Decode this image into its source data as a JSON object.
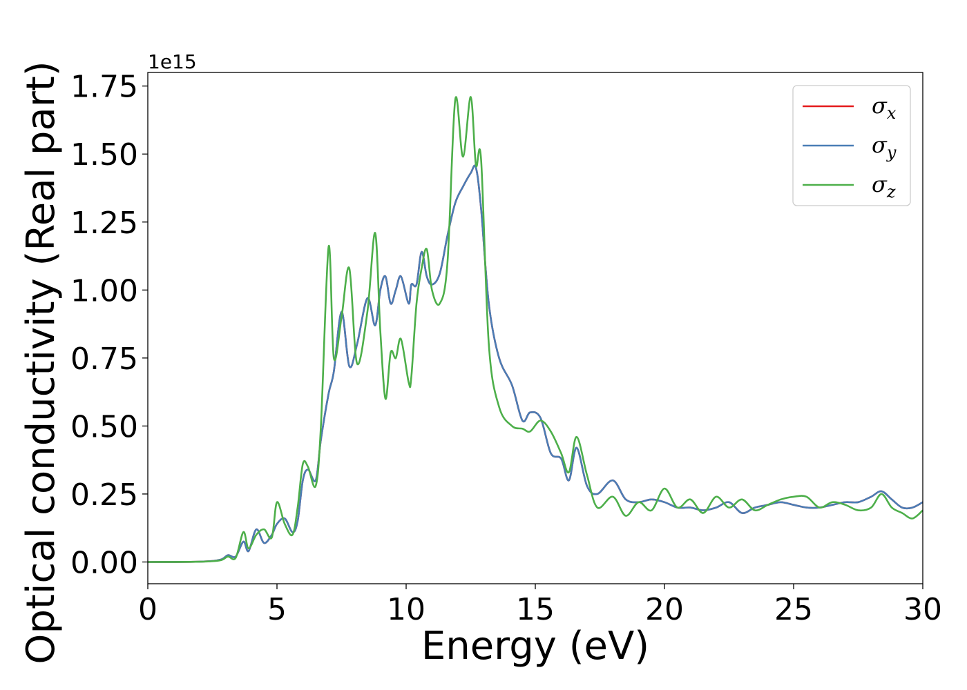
{
  "chart_data": {
    "type": "line",
    "xlabel": "Energy (eV)",
    "ylabel": "Optical conductivity (Real part)",
    "offset_text": "1e15",
    "xlim": [
      0,
      30
    ],
    "ylim": [
      -0.08,
      1.8
    ],
    "xticks": [
      0,
      5,
      10,
      15,
      20,
      25,
      30
    ],
    "xtick_labels": [
      "0",
      "5",
      "10",
      "15",
      "20",
      "25",
      "30"
    ],
    "yticks": [
      0.0,
      0.25,
      0.5,
      0.75,
      1.0,
      1.25,
      1.5,
      1.75
    ],
    "ytick_labels": [
      "0.00",
      "0.25",
      "0.50",
      "0.75",
      "1.00",
      "1.25",
      "1.50",
      "1.75"
    ],
    "grid": false,
    "legend_position": "top-right",
    "series": [
      {
        "name": "σx",
        "color": "#e41a1c",
        "x": [
          0,
          2,
          2.8,
          3.1,
          3.4,
          3.7,
          3.9,
          4.2,
          4.5,
          4.8,
          5.0,
          5.3,
          5.6,
          5.8,
          6.0,
          6.2,
          6.5,
          6.7,
          7.0,
          7.2,
          7.5,
          7.8,
          8.1,
          8.5,
          8.8,
          9.0,
          9.2,
          9.4,
          9.6,
          9.8,
          10.1,
          10.2,
          10.4,
          10.6,
          10.8,
          11.0,
          11.3,
          11.6,
          11.9,
          12.2,
          12.5,
          12.7,
          12.9,
          13.2,
          13.6,
          14.1,
          14.5,
          14.8,
          15.2,
          15.6,
          16.0,
          16.3,
          16.6,
          17.0,
          17.4,
          18.0,
          18.5,
          19.0,
          19.5,
          20.0,
          20.5,
          21.0,
          21.5,
          22.0,
          22.5,
          23.0,
          23.5,
          24.0,
          24.5,
          25.0,
          25.5,
          26.0,
          26.5,
          27.0,
          27.5,
          28.0,
          28.4,
          28.8,
          29.2,
          29.6,
          30.0
        ],
        "y": [
          0,
          0.001,
          0.008,
          0.025,
          0.02,
          0.075,
          0.04,
          0.12,
          0.07,
          0.1,
          0.14,
          0.16,
          0.11,
          0.15,
          0.3,
          0.34,
          0.3,
          0.45,
          0.62,
          0.7,
          0.92,
          0.72,
          0.8,
          0.97,
          0.87,
          1.0,
          1.05,
          0.95,
          1.0,
          1.05,
          0.95,
          1.02,
          1.02,
          1.14,
          1.05,
          1.02,
          1.06,
          1.2,
          1.32,
          1.38,
          1.43,
          1.45,
          1.3,
          0.95,
          0.75,
          0.65,
          0.52,
          0.55,
          0.53,
          0.4,
          0.38,
          0.3,
          0.42,
          0.28,
          0.25,
          0.3,
          0.23,
          0.22,
          0.23,
          0.22,
          0.2,
          0.2,
          0.19,
          0.2,
          0.22,
          0.18,
          0.2,
          0.21,
          0.22,
          0.21,
          0.2,
          0.2,
          0.21,
          0.22,
          0.22,
          0.24,
          0.26,
          0.23,
          0.2,
          0.2,
          0.22
        ]
      },
      {
        "name": "σy",
        "color": "#4a7db5",
        "x": [
          0,
          2,
          2.8,
          3.1,
          3.4,
          3.7,
          3.9,
          4.2,
          4.5,
          4.8,
          5.0,
          5.3,
          5.6,
          5.8,
          6.0,
          6.2,
          6.5,
          6.7,
          7.0,
          7.2,
          7.5,
          7.8,
          8.1,
          8.5,
          8.8,
          9.0,
          9.2,
          9.4,
          9.6,
          9.8,
          10.1,
          10.2,
          10.4,
          10.6,
          10.8,
          11.0,
          11.3,
          11.6,
          11.9,
          12.2,
          12.5,
          12.7,
          12.9,
          13.2,
          13.6,
          14.1,
          14.5,
          14.8,
          15.2,
          15.6,
          16.0,
          16.3,
          16.6,
          17.0,
          17.4,
          18.0,
          18.5,
          19.0,
          19.5,
          20.0,
          20.5,
          21.0,
          21.5,
          22.0,
          22.5,
          23.0,
          23.5,
          24.0,
          24.5,
          25.0,
          25.5,
          26.0,
          26.5,
          27.0,
          27.5,
          28.0,
          28.4,
          28.8,
          29.2,
          29.6,
          30.0
        ],
        "y": [
          0,
          0.001,
          0.008,
          0.025,
          0.02,
          0.075,
          0.04,
          0.12,
          0.07,
          0.1,
          0.14,
          0.16,
          0.11,
          0.15,
          0.3,
          0.34,
          0.3,
          0.45,
          0.62,
          0.7,
          0.92,
          0.72,
          0.8,
          0.97,
          0.87,
          1.0,
          1.05,
          0.95,
          1.0,
          1.05,
          0.95,
          1.02,
          1.02,
          1.14,
          1.05,
          1.02,
          1.06,
          1.2,
          1.32,
          1.38,
          1.43,
          1.45,
          1.3,
          0.95,
          0.75,
          0.65,
          0.52,
          0.55,
          0.53,
          0.4,
          0.38,
          0.3,
          0.42,
          0.28,
          0.25,
          0.3,
          0.23,
          0.22,
          0.23,
          0.22,
          0.2,
          0.2,
          0.19,
          0.2,
          0.22,
          0.18,
          0.2,
          0.21,
          0.22,
          0.21,
          0.2,
          0.2,
          0.21,
          0.22,
          0.22,
          0.24,
          0.26,
          0.23,
          0.2,
          0.2,
          0.22
        ]
      },
      {
        "name": "σz",
        "color": "#4daf4a",
        "x": [
          0,
          2,
          2.8,
          3.1,
          3.4,
          3.7,
          3.9,
          4.2,
          4.5,
          4.8,
          5.0,
          5.3,
          5.6,
          5.8,
          6.0,
          6.2,
          6.5,
          6.7,
          7.0,
          7.2,
          7.5,
          7.8,
          8.1,
          8.5,
          8.8,
          9.0,
          9.2,
          9.4,
          9.6,
          9.8,
          10.1,
          10.2,
          10.4,
          10.6,
          10.8,
          11.0,
          11.3,
          11.6,
          11.9,
          12.2,
          12.5,
          12.7,
          12.9,
          13.2,
          13.6,
          14.1,
          14.5,
          14.8,
          15.2,
          15.6,
          16.0,
          16.3,
          16.6,
          17.0,
          17.4,
          18.0,
          18.5,
          19.0,
          19.5,
          20.0,
          20.5,
          21.0,
          21.5,
          22.0,
          22.5,
          23.0,
          23.5,
          24.0,
          24.5,
          25.0,
          25.5,
          26.0,
          26.5,
          27.0,
          27.5,
          28.0,
          28.4,
          28.8,
          29.2,
          29.6,
          30.0
        ],
        "y": [
          0,
          0.001,
          0.006,
          0.02,
          0.015,
          0.11,
          0.05,
          0.1,
          0.12,
          0.09,
          0.22,
          0.14,
          0.1,
          0.2,
          0.36,
          0.35,
          0.28,
          0.5,
          1.16,
          0.75,
          0.9,
          1.08,
          0.73,
          0.92,
          1.21,
          0.85,
          0.6,
          0.77,
          0.75,
          0.82,
          0.66,
          0.68,
          0.95,
          1.08,
          1.15,
          1.0,
          0.95,
          1.1,
          1.7,
          1.49,
          1.71,
          1.46,
          1.48,
          0.8,
          0.57,
          0.5,
          0.49,
          0.48,
          0.52,
          0.48,
          0.4,
          0.33,
          0.46,
          0.32,
          0.2,
          0.24,
          0.17,
          0.22,
          0.19,
          0.27,
          0.2,
          0.23,
          0.18,
          0.24,
          0.2,
          0.23,
          0.19,
          0.21,
          0.23,
          0.24,
          0.24,
          0.2,
          0.22,
          0.21,
          0.19,
          0.2,
          0.25,
          0.2,
          0.18,
          0.16,
          0.19
        ]
      }
    ]
  }
}
